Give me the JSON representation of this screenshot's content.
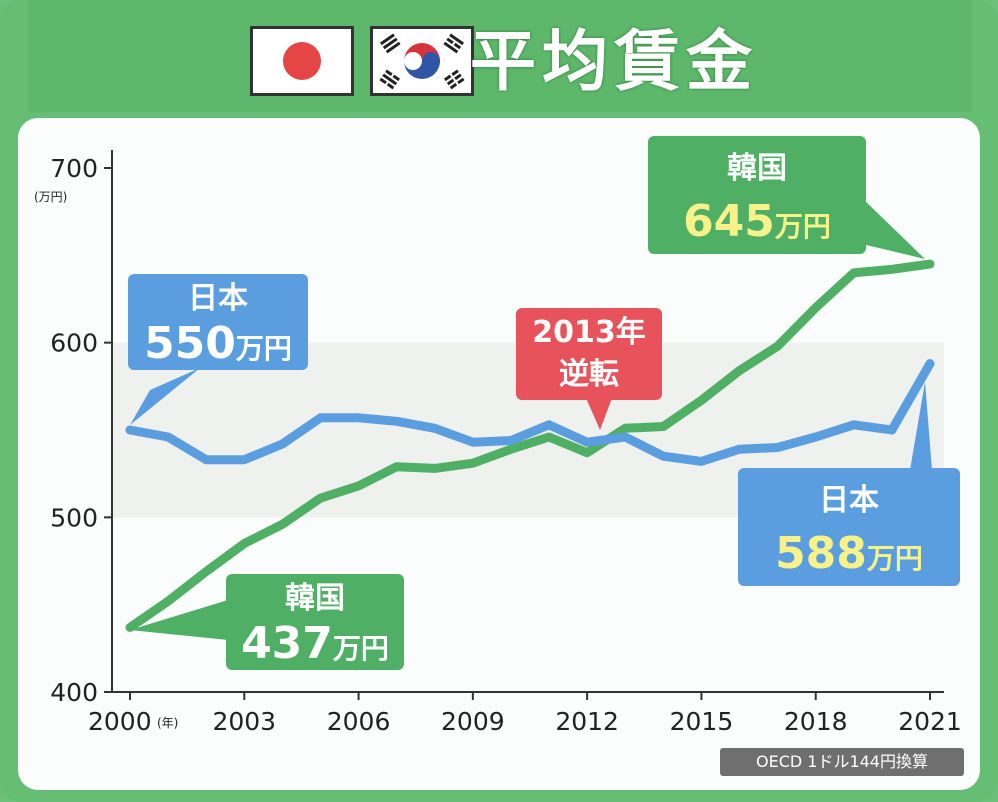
{
  "title": "平均賃金",
  "flags": [
    {
      "name": "japan-flag"
    },
    {
      "name": "korea-flag"
    }
  ],
  "source": "OECD 1ドル144円換算",
  "colors": {
    "japan": "#5b9ee0",
    "korea": "#4fb065",
    "reversal": "#e8535b",
    "highlight_text": "#f7f38a"
  },
  "chart_data": {
    "type": "line",
    "title": "平均賃金",
    "y_unit": "(万円)",
    "x_unit": "(年)",
    "ylim": [
      400,
      700
    ],
    "xlim": [
      2000,
      2021
    ],
    "yticks": [
      400,
      500,
      600,
      700
    ],
    "xticks": [
      2000,
      2003,
      2006,
      2009,
      2012,
      2015,
      2018,
      2021
    ],
    "series": [
      {
        "name": "日本",
        "x": [
          2000,
          2001,
          2002,
          2003,
          2004,
          2005,
          2006,
          2007,
          2008,
          2009,
          2010,
          2011,
          2012,
          2013,
          2014,
          2015,
          2016,
          2017,
          2018,
          2019,
          2020,
          2021
        ],
        "values": [
          550,
          546,
          533,
          533,
          542,
          557,
          557,
          555,
          551,
          543,
          544,
          553,
          543,
          546,
          535,
          532,
          539,
          540,
          546,
          553,
          550,
          588
        ]
      },
      {
        "name": "韓国",
        "x": [
          2000,
          2001,
          2002,
          2003,
          2004,
          2005,
          2006,
          2007,
          2008,
          2009,
          2010,
          2011,
          2012,
          2013,
          2014,
          2015,
          2016,
          2017,
          2018,
          2019,
          2020,
          2021
        ],
        "values": [
          437,
          452,
          469,
          485,
          496,
          511,
          518,
          529,
          528,
          531,
          539,
          546,
          537,
          551,
          552,
          567,
          584,
          598,
          620,
          640,
          642,
          645
        ]
      }
    ],
    "annotations": {
      "japan_start": {
        "name": "日本",
        "value": "550",
        "unit": "万円"
      },
      "japan_end": {
        "name": "日本",
        "value": "588",
        "unit": "万円"
      },
      "korea_start": {
        "name": "韓国",
        "value": "437",
        "unit": "万円"
      },
      "korea_end": {
        "name": "韓国",
        "value": "645",
        "unit": "万円"
      },
      "reversal": {
        "year": "2013年",
        "label": "逆転"
      }
    }
  }
}
